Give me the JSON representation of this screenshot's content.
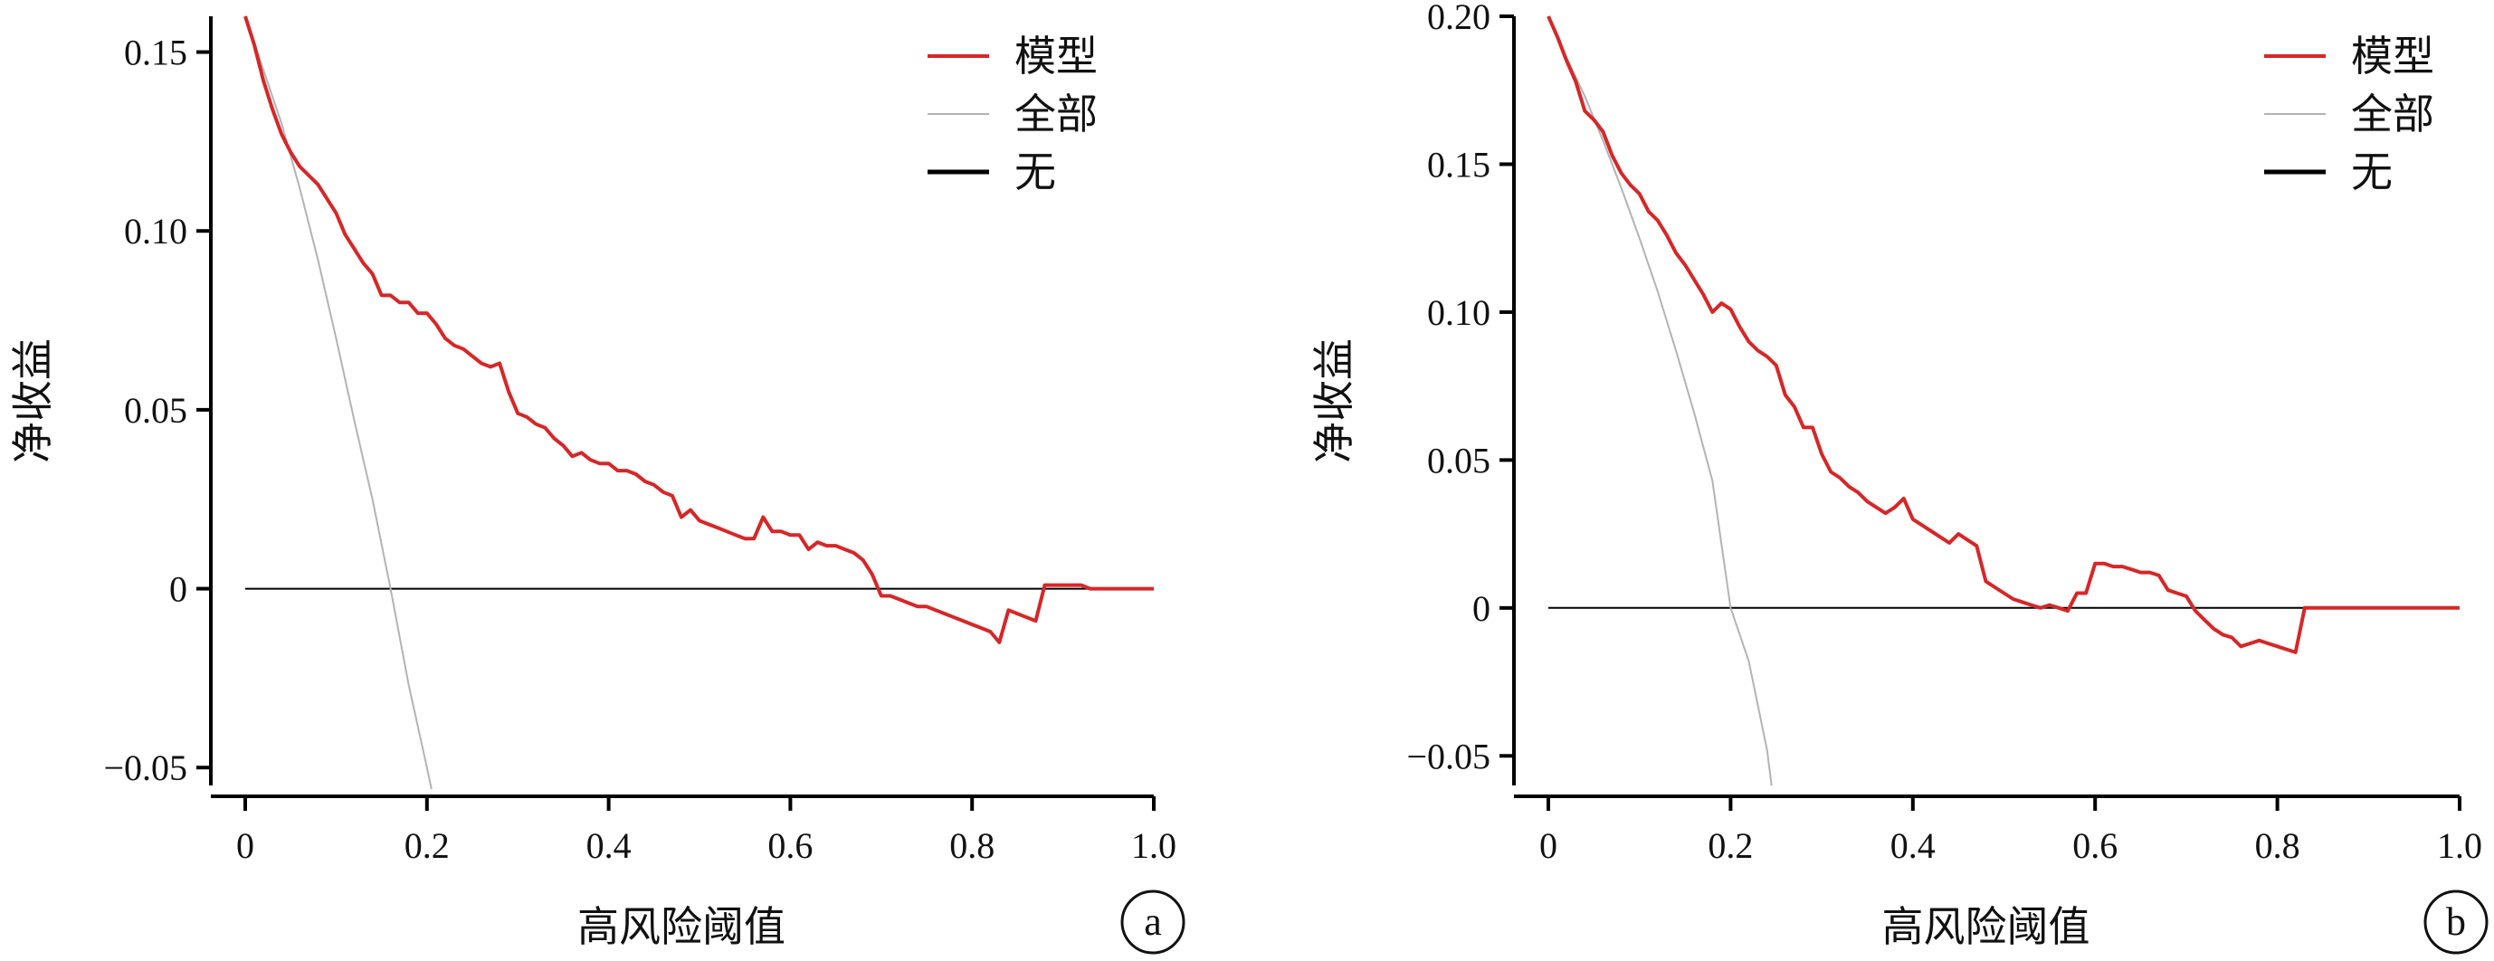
{
  "colors": {
    "model": "#d62728",
    "all": "#b3b3b3",
    "none": "#000000",
    "axis": "#000000"
  },
  "chart_data": [
    {
      "type": "line",
      "panel_label": "a",
      "title": "",
      "xlabel": "高风险阈值",
      "ylabel": "净收益",
      "xlim": [
        0,
        1.0
      ],
      "ylim": [
        -0.055,
        0.16
      ],
      "xticks": [
        0,
        0.2,
        0.4,
        0.6,
        0.8,
        1.0
      ],
      "xtick_labels": [
        "0",
        "0.2",
        "0.4",
        "0.6",
        "0.8",
        "1.0"
      ],
      "yticks": [
        -0.05,
        0,
        0.05,
        0.1,
        0.15
      ],
      "ytick_labels": [
        "−0.05",
        "0",
        "0.05",
        "0.10",
        "0.15"
      ],
      "grid": false,
      "legend_position": "top-right",
      "series": [
        {
          "name": "模型",
          "color_key": "model",
          "x": [
            0,
            0.01,
            0.02,
            0.03,
            0.04,
            0.05,
            0.06,
            0.08,
            0.1,
            0.11,
            0.12,
            0.13,
            0.14,
            0.15,
            0.16,
            0.17,
            0.18,
            0.19,
            0.2,
            0.21,
            0.22,
            0.23,
            0.24,
            0.25,
            0.26,
            0.27,
            0.28,
            0.29,
            0.3,
            0.31,
            0.32,
            0.33,
            0.34,
            0.35,
            0.36,
            0.37,
            0.38,
            0.39,
            0.4,
            0.41,
            0.42,
            0.43,
            0.44,
            0.45,
            0.46,
            0.47,
            0.48,
            0.49,
            0.5,
            0.51,
            0.52,
            0.53,
            0.54,
            0.55,
            0.56,
            0.57,
            0.58,
            0.59,
            0.6,
            0.61,
            0.62,
            0.63,
            0.64,
            0.65,
            0.66,
            0.67,
            0.68,
            0.69,
            0.7,
            0.71,
            0.72,
            0.73,
            0.74,
            0.75,
            0.76,
            0.77,
            0.78,
            0.79,
            0.8,
            0.81,
            0.82,
            0.83,
            0.84,
            0.85,
            0.86,
            0.87,
            0.88,
            0.89,
            0.9,
            0.91,
            0.92,
            0.93,
            0.94,
            0.95,
            0.96,
            0.97,
            0.98,
            0.99,
            1.0
          ],
          "y": [
            0.16,
            0.152,
            0.142,
            0.134,
            0.127,
            0.122,
            0.118,
            0.113,
            0.105,
            0.099,
            0.095,
            0.091,
            0.088,
            0.082,
            0.082,
            0.08,
            0.08,
            0.077,
            0.077,
            0.074,
            0.07,
            0.068,
            0.067,
            0.065,
            0.063,
            0.062,
            0.063,
            0.055,
            0.049,
            0.048,
            0.046,
            0.045,
            0.042,
            0.04,
            0.037,
            0.038,
            0.036,
            0.035,
            0.035,
            0.033,
            0.033,
            0.032,
            0.03,
            0.029,
            0.027,
            0.026,
            0.02,
            0.022,
            0.019,
            0.018,
            0.017,
            0.016,
            0.015,
            0.014,
            0.014,
            0.02,
            0.016,
            0.016,
            0.015,
            0.015,
            0.011,
            0.013,
            0.012,
            0.012,
            0.011,
            0.01,
            0.008,
            0.004,
            -0.002,
            -0.002,
            -0.003,
            -0.004,
            -0.005,
            -0.005,
            -0.006,
            -0.007,
            -0.008,
            -0.009,
            -0.01,
            -0.011,
            -0.012,
            -0.015,
            -0.006,
            -0.007,
            -0.008,
            -0.009,
            0.001,
            0.001,
            0.001,
            0.001,
            0.001,
            0.0,
            0.0,
            0.0,
            0.0,
            0.0,
            0.0,
            0.0,
            0.0
          ]
        },
        {
          "name": "全部",
          "color_key": "all",
          "x": [
            0,
            0.02,
            0.04,
            0.06,
            0.08,
            0.1,
            0.12,
            0.14,
            0.16,
            0.18,
            0.2,
            0.205
          ],
          "y": [
            0.16,
            0.145,
            0.13,
            0.112,
            0.092,
            0.07,
            0.047,
            0.025,
            0.0,
            -0.027,
            -0.05,
            -0.056
          ]
        },
        {
          "name": "无",
          "color_key": "none",
          "x": [
            0,
            1.0
          ],
          "y": [
            0,
            0
          ]
        }
      ]
    },
    {
      "type": "line",
      "panel_label": "b",
      "title": "",
      "xlabel": "高风险阈值",
      "ylabel": "净收益",
      "xlim": [
        0,
        1.0
      ],
      "ylim": [
        -0.06,
        0.2
      ],
      "xticks": [
        0,
        0.2,
        0.4,
        0.6,
        0.8,
        1.0
      ],
      "xtick_labels": [
        "0",
        "0.2",
        "0.4",
        "0.6",
        "0.8",
        "1.0"
      ],
      "yticks": [
        -0.05,
        0,
        0.05,
        0.1,
        0.15,
        0.2
      ],
      "ytick_labels": [
        "−0.05",
        "0",
        "0.05",
        "0.10",
        "0.15",
        "0.20"
      ],
      "grid": false,
      "legend_position": "top-right",
      "series": [
        {
          "name": "模型",
          "color_key": "model",
          "x": [
            0,
            0.01,
            0.02,
            0.03,
            0.04,
            0.05,
            0.06,
            0.07,
            0.08,
            0.09,
            0.1,
            0.11,
            0.12,
            0.13,
            0.14,
            0.15,
            0.16,
            0.17,
            0.18,
            0.19,
            0.2,
            0.21,
            0.22,
            0.23,
            0.24,
            0.25,
            0.26,
            0.27,
            0.28,
            0.29,
            0.3,
            0.31,
            0.32,
            0.33,
            0.34,
            0.35,
            0.36,
            0.37,
            0.38,
            0.39,
            0.4,
            0.41,
            0.42,
            0.43,
            0.44,
            0.45,
            0.46,
            0.47,
            0.48,
            0.49,
            0.5,
            0.51,
            0.52,
            0.53,
            0.54,
            0.55,
            0.56,
            0.57,
            0.58,
            0.59,
            0.6,
            0.61,
            0.62,
            0.63,
            0.64,
            0.65,
            0.66,
            0.67,
            0.68,
            0.69,
            0.7,
            0.71,
            0.72,
            0.73,
            0.74,
            0.75,
            0.76,
            0.77,
            0.78,
            0.79,
            0.8,
            0.81,
            0.82,
            0.83,
            0.85,
            0.9,
            0.95,
            1.0
          ],
          "y": [
            0.2,
            0.193,
            0.185,
            0.178,
            0.168,
            0.165,
            0.161,
            0.153,
            0.147,
            0.143,
            0.14,
            0.134,
            0.131,
            0.126,
            0.12,
            0.116,
            0.111,
            0.106,
            0.1,
            0.103,
            0.101,
            0.095,
            0.09,
            0.087,
            0.085,
            0.082,
            0.072,
            0.068,
            0.061,
            0.061,
            0.052,
            0.046,
            0.044,
            0.041,
            0.039,
            0.036,
            0.034,
            0.032,
            0.034,
            0.037,
            0.03,
            0.028,
            0.026,
            0.024,
            0.022,
            0.025,
            0.023,
            0.021,
            0.009,
            0.007,
            0.005,
            0.003,
            0.002,
            0.001,
            0.0,
            0.001,
            0.0,
            -0.001,
            0.005,
            0.005,
            0.015,
            0.015,
            0.014,
            0.014,
            0.013,
            0.012,
            0.012,
            0.011,
            0.006,
            0.005,
            0.004,
            -0.001,
            -0.004,
            -0.007,
            -0.009,
            -0.01,
            -0.013,
            -0.012,
            -0.011,
            -0.012,
            -0.013,
            -0.014,
            -0.015,
            0.0,
            0.0,
            0.0,
            0.0,
            0.0
          ]
        },
        {
          "name": "全部",
          "color_key": "all",
          "x": [
            0,
            0.02,
            0.04,
            0.06,
            0.08,
            0.1,
            0.12,
            0.14,
            0.16,
            0.18,
            0.2,
            0.22,
            0.24,
            0.245
          ],
          "y": [
            0.2,
            0.186,
            0.173,
            0.158,
            0.142,
            0.125,
            0.107,
            0.087,
            0.066,
            0.043,
            0.0,
            -0.018,
            -0.048,
            -0.06
          ]
        },
        {
          "name": "无",
          "color_key": "none",
          "x": [
            0,
            1.0
          ],
          "y": [
            0,
            0
          ]
        }
      ]
    }
  ]
}
